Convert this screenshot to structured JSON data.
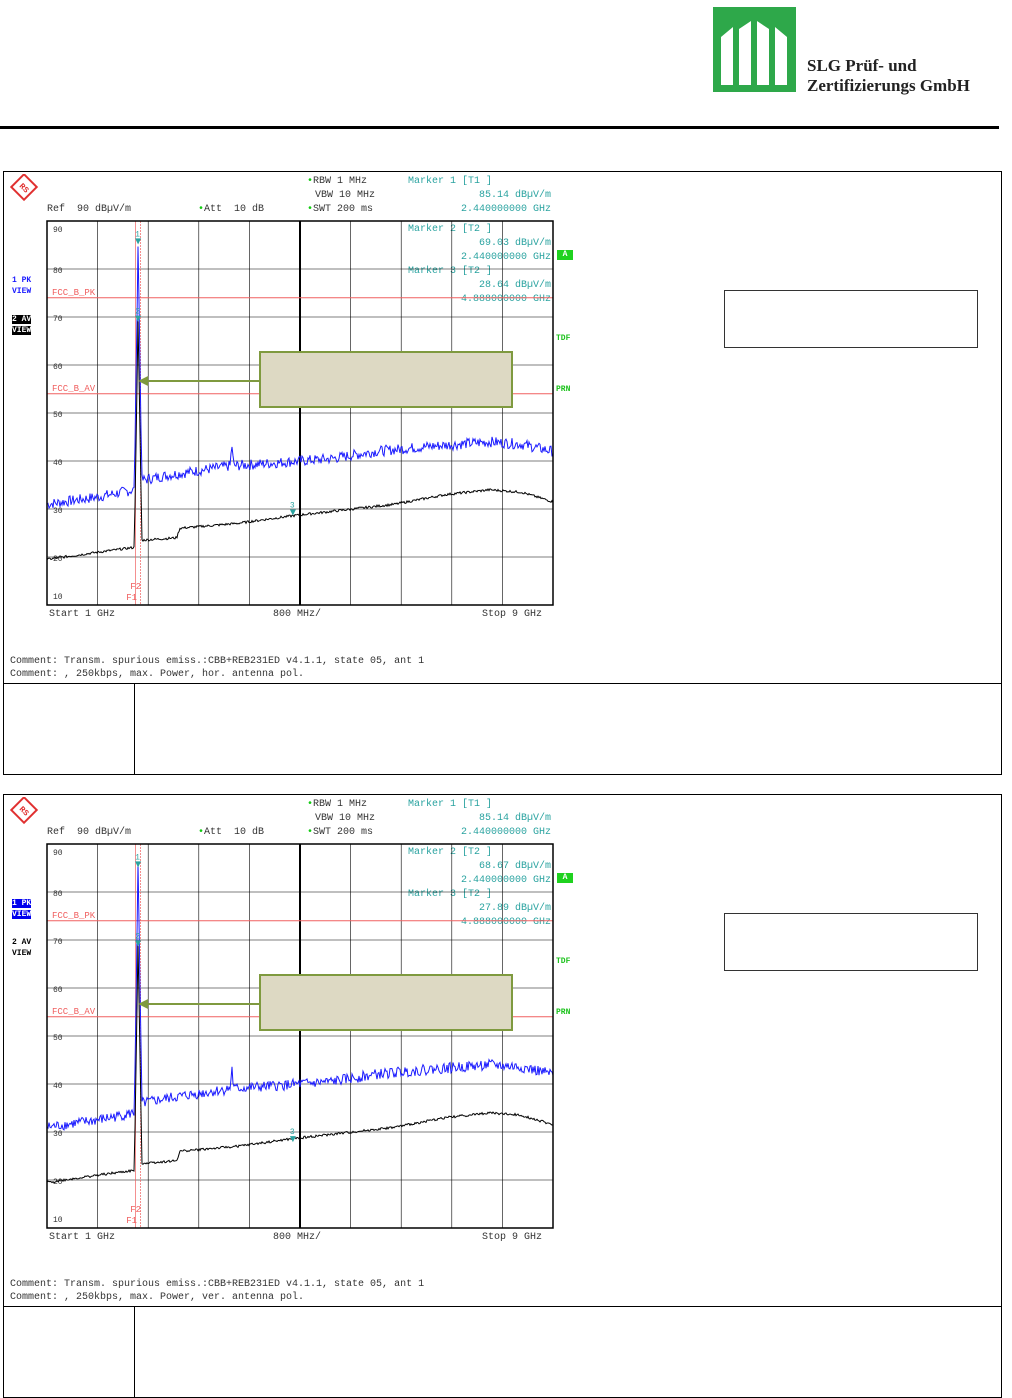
{
  "header": {
    "company_line1": "SLG Prüf- und",
    "company_line2": "Zertifizierungs GmbH",
    "logo_color": "#2ea84a"
  },
  "plots": [
    {
      "rbw": "RBW 1 MHz",
      "vbw": "VBW 10 MHz",
      "swt": "SWT 200 ms",
      "ref": "Ref  90 dBµV/m",
      "att": "Att  10 dB",
      "markers": [
        {
          "title": "Marker 1 [T1 ]",
          "level": "85.14 dBµV/m",
          "freq": "2.440000000 GHz"
        },
        {
          "title": "Marker 2 [T2 ]",
          "level": "69.03 dBµV/m",
          "freq": "2.440000000 GHz"
        },
        {
          "title": "Marker 3 [T2 ]",
          "level": "28.64 dBµV/m",
          "freq": "4.888000000 GHz"
        }
      ],
      "trace1_label": "1 PK\nVIEW",
      "trace2_label": "2 AV\nVIEW",
      "active_trace": 2,
      "limit_pk": "FCC_B_PK",
      "limit_av": "FCC_B_AV",
      "f1": "F1",
      "f2": "F2",
      "start": "Start 1 GHz",
      "span_div": "800 MHz/",
      "stop": "Stop 9 GHz",
      "comment1": "Comment: Transm. spurious emiss.:CBB+REB231ED v4.1.1, state 05, ant 1",
      "comment2": "Comment: , 250kbps, max. Power, hor. antenna pol.",
      "m1": [
        2.44,
        85.14
      ],
      "m2": [
        2.44,
        69.03
      ],
      "m3": [
        4.888,
        28.64
      ]
    },
    {
      "rbw": "RBW 1 MHz",
      "vbw": "VBW 10 MHz",
      "swt": "SWT 200 ms",
      "ref": "Ref  90 dBµV/m",
      "att": "Att  10 dB",
      "markers": [
        {
          "title": "Marker 1 [T1 ]",
          "level": "85.14 dBµV/m",
          "freq": "2.440000000 GHz"
        },
        {
          "title": "Marker 2 [T2 ]",
          "level": "68.67 dBµV/m",
          "freq": "2.440000000 GHz"
        },
        {
          "title": "Marker 3 [T2 ]",
          "level": "27.89 dBµV/m",
          "freq": "4.888000000 GHz"
        }
      ],
      "trace1_label": "1 PK\nVIEW",
      "trace2_label": "2 AV\nVIEW",
      "active_trace": 1,
      "limit_pk": "FCC_B_PK",
      "limit_av": "FCC_B_AV",
      "f1": "F1",
      "f2": "F2",
      "start": "Start 1 GHz",
      "span_div": "800 MHz/",
      "stop": "Stop 9 GHz",
      "comment1": "Comment: Transm. spurious emiss.:CBB+REB231ED v4.1.1, state 05, ant 1",
      "comment2": "Comment: , 250kbps, max. Power, ver. antenna pol.",
      "m1": [
        2.44,
        85.14
      ],
      "m2": [
        2.44,
        68.67
      ],
      "m3": [
        4.888,
        27.89
      ]
    }
  ],
  "chart_common": {
    "y_ticks": [
      "90",
      "80",
      "70",
      "60",
      "50",
      "40",
      "30",
      "20",
      "10"
    ],
    "ylim": [
      10,
      90
    ],
    "xlim_ghz": [
      1,
      9
    ],
    "limit_pk_db": 74,
    "limit_av_db": 54,
    "pk_trace": [
      [
        1,
        31
      ],
      [
        1.8,
        32.5
      ],
      [
        2.38,
        34
      ],
      [
        2.44,
        85
      ],
      [
        2.5,
        36
      ],
      [
        2.9,
        37
      ],
      [
        3.4,
        38
      ],
      [
        3.9,
        39
      ],
      [
        3.92,
        44
      ],
      [
        3.95,
        39
      ],
      [
        4.5,
        39.5
      ],
      [
        5.5,
        40.5
      ],
      [
        6.2,
        42
      ],
      [
        7,
        43
      ],
      [
        8,
        44
      ],
      [
        8.5,
        43.5
      ],
      [
        9,
        42
      ]
    ],
    "av_trace": [
      [
        1,
        19.5
      ],
      [
        1.8,
        21
      ],
      [
        2.38,
        22
      ],
      [
        2.44,
        69
      ],
      [
        2.5,
        23.5
      ],
      [
        3.05,
        24
      ],
      [
        3.1,
        26
      ],
      [
        4,
        27
      ],
      [
        4.888,
        28.6
      ],
      [
        5.5,
        29.5
      ],
      [
        6.5,
        31
      ],
      [
        7.3,
        33
      ],
      [
        8,
        34
      ],
      [
        8.5,
        33.5
      ],
      [
        9,
        31.5
      ]
    ],
    "colors": {
      "pk": "#1a1aff",
      "av": "#000000",
      "limit": "#f06060",
      "grid": "#000",
      "marker": "#2aa3a0"
    }
  }
}
